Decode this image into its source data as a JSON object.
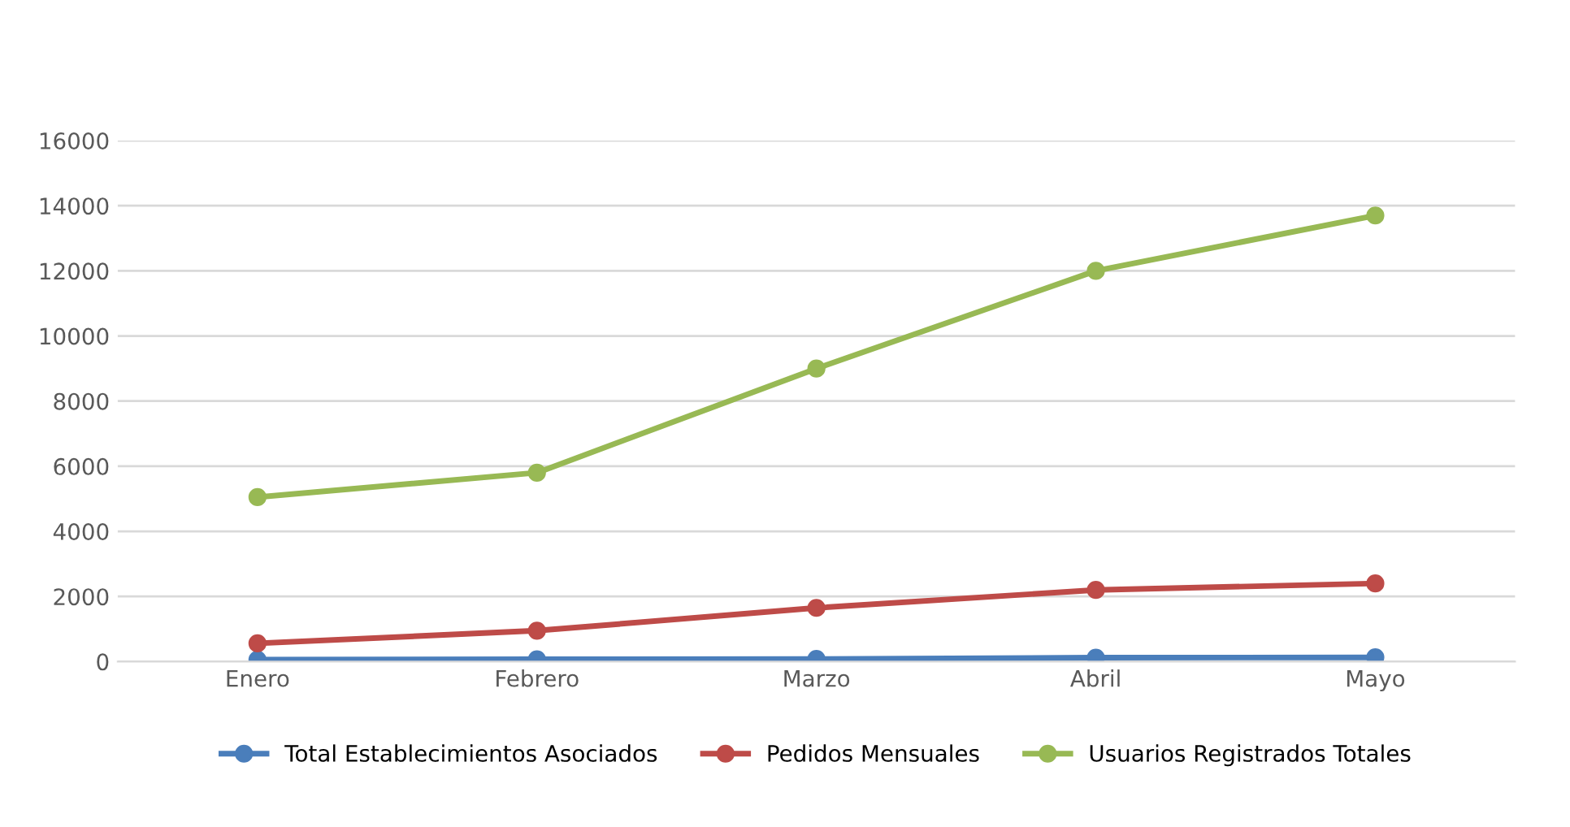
{
  "chart_data": {
    "type": "line",
    "categories": [
      "Enero",
      "Febrero",
      "Marzo",
      "Abril",
      "Mayo"
    ],
    "series": [
      {
        "name": "Total Establecimientos Asociados",
        "color": "#4a7ebb",
        "values": [
          60,
          70,
          80,
          120,
          130
        ]
      },
      {
        "name": "Pedidos Mensuales",
        "color": "#be4b48",
        "values": [
          560,
          950,
          1650,
          2200,
          2400
        ]
      },
      {
        "name": "Usuarios Registrados Totales",
        "color": "#98b954",
        "values": [
          5050,
          5800,
          9000,
          12000,
          13700
        ]
      }
    ],
    "ylim": [
      0,
      16000
    ],
    "yticks": [
      0,
      2000,
      4000,
      6000,
      8000,
      10000,
      12000,
      14000,
      16000
    ],
    "grid": "y",
    "legend": "bottom",
    "marker": "circle",
    "line_style": "solid"
  }
}
